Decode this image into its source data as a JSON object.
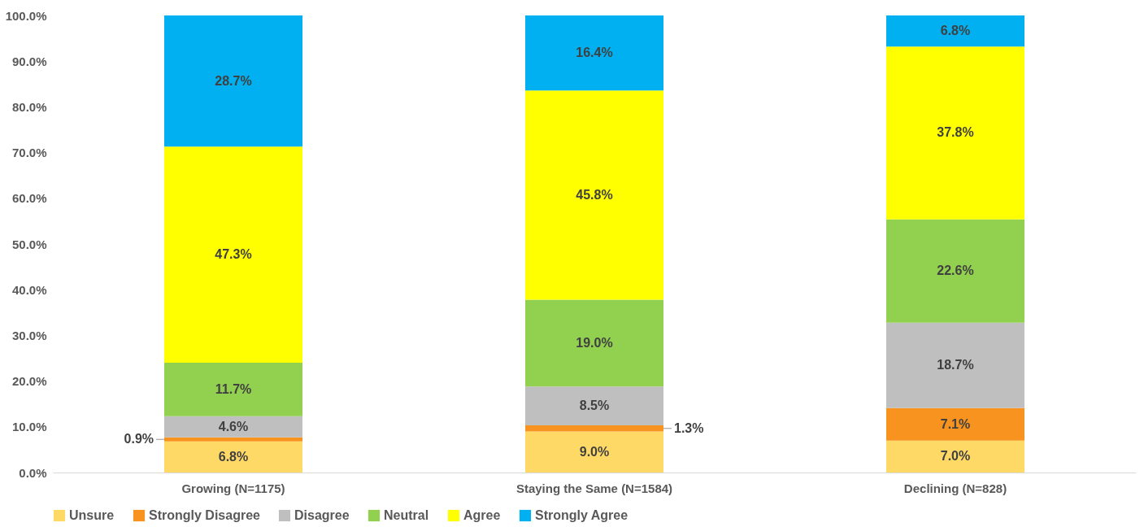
{
  "chart_data": {
    "type": "bar",
    "stacked": true,
    "categories": [
      "Growing (N=1175)",
      "Staying the Same (N=1584)",
      "Declining (N=828)"
    ],
    "series": [
      {
        "name": "Unsure",
        "color": "#ffd966",
        "values": [
          6.8,
          9.0,
          7.0
        ],
        "value_labels": [
          "6.8%",
          "9.0%",
          "7.0%"
        ]
      },
      {
        "name": "Strongly Disagree",
        "color": "#f7931e",
        "values": [
          0.9,
          1.3,
          7.1
        ],
        "value_labels": [
          "0.9%",
          "1.3%",
          "7.1%"
        ]
      },
      {
        "name": "Disagree",
        "color": "#bfbfbf",
        "values": [
          4.6,
          8.5,
          18.7
        ],
        "value_labels": [
          "4.6%",
          "8.5%",
          "18.7%"
        ]
      },
      {
        "name": "Neutral",
        "color": "#92d050",
        "values": [
          11.7,
          19.0,
          22.6
        ],
        "value_labels": [
          "11.7%",
          "19.0%",
          "22.6%"
        ]
      },
      {
        "name": "Agree",
        "color": "#ffff00",
        "values": [
          47.3,
          45.8,
          37.8
        ],
        "value_labels": [
          "47.3%",
          "45.8%",
          "37.8%"
        ]
      },
      {
        "name": "Strongly Agree",
        "color": "#00b0f0",
        "values": [
          28.7,
          16.4,
          6.8
        ],
        "value_labels": [
          "28.7%",
          "16.4%",
          "6.8%"
        ]
      }
    ],
    "ylim": [
      0,
      100
    ],
    "yticks": [
      {
        "value": 0,
        "label": "0.0%"
      },
      {
        "value": 10,
        "label": "10.0%"
      },
      {
        "value": 20,
        "label": "20.0%"
      },
      {
        "value": 30,
        "label": "30.0%"
      },
      {
        "value": 40,
        "label": "40.0%"
      },
      {
        "value": 50,
        "label": "50.0%"
      },
      {
        "value": 60,
        "label": "60.0%"
      },
      {
        "value": 70,
        "label": "70.0%"
      },
      {
        "value": 80,
        "label": "80.0%"
      },
      {
        "value": 90,
        "label": "90.0%"
      },
      {
        "value": 100,
        "label": "100.0%"
      }
    ],
    "grid": false,
    "legend": "bottom"
  }
}
